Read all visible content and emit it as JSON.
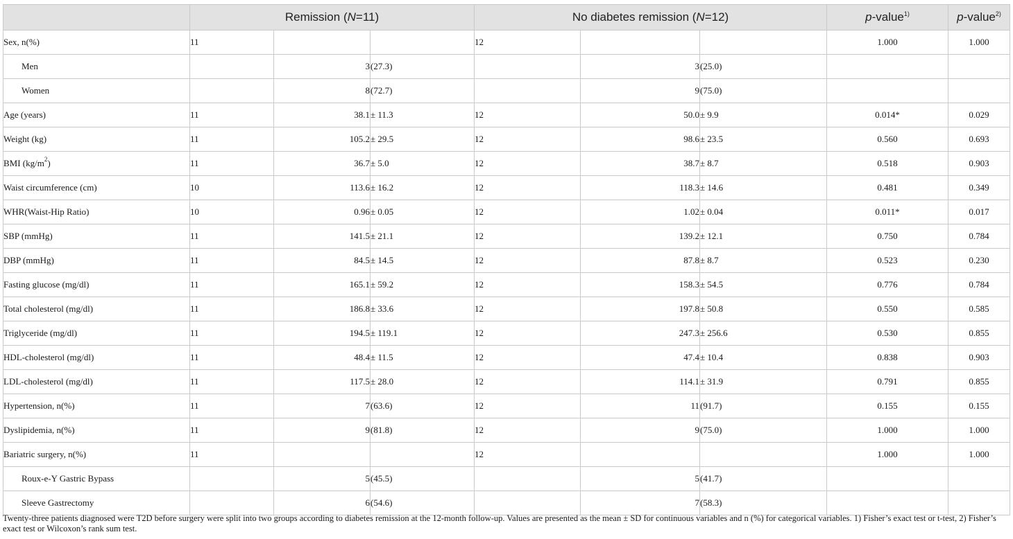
{
  "header": {
    "remission_label": "Remission (",
    "remission_n_italic": "N",
    "remission_n_rest": "=11)",
    "noremission_label": "No diabetes remission (",
    "noremission_n_italic": "N",
    "noremission_n_rest": "=12)",
    "p_italic": "p",
    "p_rest": "-value",
    "p1_sup": "1)",
    "p2_sup": "2)"
  },
  "rows": [
    {
      "label": "Sex, n(%)",
      "sub": false,
      "n1": "11",
      "m1": "",
      "s1": "",
      "n2": "12",
      "m2": "",
      "s2": "",
      "p1": "1.000",
      "p2": "1.000"
    },
    {
      "label": "Men",
      "sub": true,
      "n1": "",
      "m1": "3",
      "s1": "(27.3)",
      "n2": "",
      "m2": "3",
      "s2": "(25.0)",
      "p1": "",
      "p2": ""
    },
    {
      "label": "Women",
      "sub": true,
      "n1": "",
      "m1": "8",
      "s1": "(72.7)",
      "n2": "",
      "m2": "9",
      "s2": "(75.0)",
      "p1": "",
      "p2": ""
    },
    {
      "label": "Age (years)",
      "sub": false,
      "n1": "11",
      "m1": "38.1",
      "s1": "± 11.3",
      "n2": "12",
      "m2": "50.0",
      "s2": "± 9.9",
      "p1": "0.014*",
      "p2": "0.029"
    },
    {
      "label": "Weight (kg)",
      "sub": false,
      "n1": "11",
      "m1": "105.2",
      "s1": "± 29.5",
      "n2": "12",
      "m2": "98.6",
      "s2": "± 23.5",
      "p1": "0.560",
      "p2": "0.693"
    },
    {
      "label": "BMI (kg/m",
      "label_sup": "2",
      "label_after": ")",
      "sub": false,
      "n1": "11",
      "m1": "36.7",
      "s1": "± 5.0",
      "n2": "12",
      "m2": "38.7",
      "s2": "± 8.7",
      "p1": "0.518",
      "p2": "0.903"
    },
    {
      "label": "Waist circumference (cm)",
      "sub": false,
      "n1": "10",
      "m1": "113.6",
      "s1": "± 16.2",
      "n2": "12",
      "m2": "118.3",
      "s2": "± 14.6",
      "p1": "0.481",
      "p2": "0.349"
    },
    {
      "label": "WHR(Waist-Hip Ratio)",
      "sub": false,
      "n1": "10",
      "m1": "0.96",
      "s1": "± 0.05",
      "n2": "12",
      "m2": "1.02",
      "s2": "± 0.04",
      "p1": "0.011*",
      "p2": "0.017"
    },
    {
      "label": "SBP (mmHg)",
      "sub": false,
      "n1": "11",
      "m1": "141.5",
      "s1": "± 21.1",
      "n2": "12",
      "m2": "139.2",
      "s2": "± 12.1",
      "p1": "0.750",
      "p2": "0.784"
    },
    {
      "label": "DBP (mmHg)",
      "sub": false,
      "n1": "11",
      "m1": "84.5",
      "s1": "± 14.5",
      "n2": "12",
      "m2": "87.8",
      "s2": "± 8.7",
      "p1": "0.523",
      "p2": "0.230"
    },
    {
      "label": "Fasting glucose (mg/dl)",
      "sub": false,
      "n1": "11",
      "m1": "165.1",
      "s1": "± 59.2",
      "n2": "12",
      "m2": "158.3",
      "s2": "± 54.5",
      "p1": "0.776",
      "p2": "0.784"
    },
    {
      "label": "Total cholesterol (mg/dl)",
      "sub": false,
      "n1": "11",
      "m1": "186.8",
      "s1": "± 33.6",
      "n2": "12",
      "m2": "197.8",
      "s2": "± 50.8",
      "p1": "0.550",
      "p2": "0.585"
    },
    {
      "label": "Triglyceride (mg/dl)",
      "sub": false,
      "n1": "11",
      "m1": "194.5",
      "s1": "± 119.1",
      "n2": "12",
      "m2": "247.3",
      "s2": "± 256.6",
      "p1": "0.530",
      "p2": "0.855"
    },
    {
      "label": "HDL-cholesterol (mg/dl)",
      "sub": false,
      "n1": "11",
      "m1": "48.4",
      "s1": "± 11.5",
      "n2": "12",
      "m2": "47.4",
      "s2": "± 10.4",
      "p1": "0.838",
      "p2": "0.903"
    },
    {
      "label": "LDL-cholesterol (mg/dl)",
      "sub": false,
      "n1": "11",
      "m1": "117.5",
      "s1": "± 28.0",
      "n2": "12",
      "m2": "114.1",
      "s2": "± 31.9",
      "p1": "0.791",
      "p2": "0.855"
    },
    {
      "label": "Hypertension, n(%)",
      "sub": false,
      "n1": "11",
      "m1": "7",
      "s1": "(63.6)",
      "n2": "12",
      "m2": "11",
      "s2": "(91.7)",
      "p1": "0.155",
      "p2": "0.155"
    },
    {
      "label": "Dyslipidemia, n(%)",
      "sub": false,
      "n1": "11",
      "m1": "9",
      "s1": "(81.8)",
      "n2": "12",
      "m2": "9",
      "s2": "(75.0)",
      "p1": "1.000",
      "p2": "1.000"
    },
    {
      "label": "Bariatric surgery, n(%)",
      "sub": false,
      "n1": "11",
      "m1": "",
      "s1": "",
      "n2": "12",
      "m2": "",
      "s2": "",
      "p1": "1.000",
      "p2": "1.000"
    },
    {
      "label": "Roux-e-Y Gastric Bypass",
      "sub": true,
      "n1": "",
      "m1": "5",
      "s1": "(45.5)",
      "n2": "",
      "m2": "5",
      "s2": "(41.7)",
      "p1": "",
      "p2": ""
    },
    {
      "label": "Sleeve Gastrectomy",
      "sub": true,
      "n1": "",
      "m1": "6",
      "s1": "(54.6)",
      "n2": "",
      "m2": "7",
      "s2": "(58.3)",
      "p1": "",
      "p2": ""
    }
  ],
  "footnote": "Twenty-three patients diagnosed were T2D before surgery were split into two groups according to diabetes remission at the 12-month follow-up. Values are presented as the mean ± SD for continuous variables and n (%) for categorical variables. 1) Fisher’s exact test or t-test, 2) Fisher’s exact test or Wilcoxon’s rank sum test."
}
